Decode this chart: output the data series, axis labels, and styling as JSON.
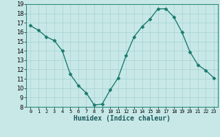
{
  "x": [
    0,
    1,
    2,
    3,
    4,
    5,
    6,
    7,
    8,
    9,
    10,
    11,
    12,
    13,
    14,
    15,
    16,
    17,
    18,
    19,
    20,
    21,
    22,
    23
  ],
  "y": [
    16.7,
    16.2,
    15.5,
    15.1,
    14.0,
    11.5,
    10.3,
    9.5,
    8.2,
    8.3,
    9.8,
    11.1,
    13.5,
    15.5,
    16.6,
    17.4,
    18.5,
    18.5,
    17.6,
    16.0,
    13.9,
    12.5,
    11.9,
    11.1
  ],
  "xlabel": "Humidex (Indice chaleur)",
  "ylim": [
    8,
    19
  ],
  "xlim_min": -0.5,
  "xlim_max": 23.5,
  "yticks": [
    8,
    9,
    10,
    11,
    12,
    13,
    14,
    15,
    16,
    17,
    18,
    19
  ],
  "xticks": [
    0,
    1,
    2,
    3,
    4,
    5,
    6,
    7,
    8,
    9,
    10,
    11,
    12,
    13,
    14,
    15,
    16,
    17,
    18,
    19,
    20,
    21,
    22,
    23
  ],
  "line_color": "#1a7a6e",
  "marker_color": "#1a7a6e",
  "bg_color": "#c8e8e8",
  "grid_color": "#aad4d4",
  "axes_bg": "#c8e8e8"
}
